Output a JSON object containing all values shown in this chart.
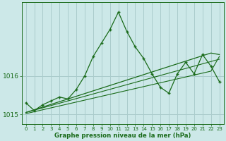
{
  "xlabel": "Graphe pression niveau de la mer (hPa)",
  "ylabel": "",
  "bg_color": "#cce8e8",
  "grid_color": "#aacccc",
  "line_color": "#1a6b1a",
  "hours": [
    0,
    1,
    2,
    3,
    4,
    5,
    6,
    7,
    8,
    9,
    10,
    11,
    12,
    13,
    14,
    15,
    16,
    17,
    18,
    19,
    20,
    21,
    22,
    23
  ],
  "pressure_main": [
    1015.3,
    1015.1,
    1015.25,
    1015.35,
    1015.45,
    1015.4,
    1015.65,
    1016.0,
    1016.5,
    1016.85,
    1017.2,
    1017.65,
    1017.15,
    1016.75,
    1016.45,
    1016.05,
    1015.7,
    1015.55,
    1016.05,
    1016.35,
    1016.05,
    1016.55,
    1016.25,
    1015.85
  ],
  "line1": [
    1015.05,
    1015.12,
    1015.19,
    1015.26,
    1015.33,
    1015.4,
    1015.47,
    1015.54,
    1015.61,
    1015.68,
    1015.75,
    1015.82,
    1015.89,
    1015.96,
    1016.03,
    1016.1,
    1016.17,
    1016.24,
    1016.31,
    1016.38,
    1016.45,
    1016.52,
    1016.59,
    1016.55
  ],
  "line2": [
    1015.05,
    1015.11,
    1015.17,
    1015.23,
    1015.29,
    1015.35,
    1015.41,
    1015.47,
    1015.53,
    1015.59,
    1015.65,
    1015.71,
    1015.77,
    1015.83,
    1015.89,
    1015.95,
    1016.01,
    1016.07,
    1016.13,
    1016.19,
    1016.25,
    1016.31,
    1016.37,
    1016.43
  ],
  "line3": [
    1015.02,
    1015.07,
    1015.12,
    1015.17,
    1015.22,
    1015.27,
    1015.32,
    1015.37,
    1015.42,
    1015.47,
    1015.52,
    1015.57,
    1015.62,
    1015.67,
    1015.72,
    1015.77,
    1015.82,
    1015.87,
    1015.92,
    1015.97,
    1016.02,
    1016.07,
    1016.12,
    1016.5
  ],
  "ylim": [
    1014.75,
    1017.9
  ],
  "ytick_vals": [
    1015.0,
    1016.0
  ],
  "ytick_labels": [
    "1015",
    "1016"
  ],
  "xlim": [
    -0.5,
    23.5
  ],
  "xticks": [
    0,
    1,
    2,
    3,
    4,
    5,
    6,
    7,
    8,
    9,
    10,
    11,
    12,
    13,
    14,
    15,
    16,
    17,
    18,
    19,
    20,
    21,
    22,
    23
  ]
}
